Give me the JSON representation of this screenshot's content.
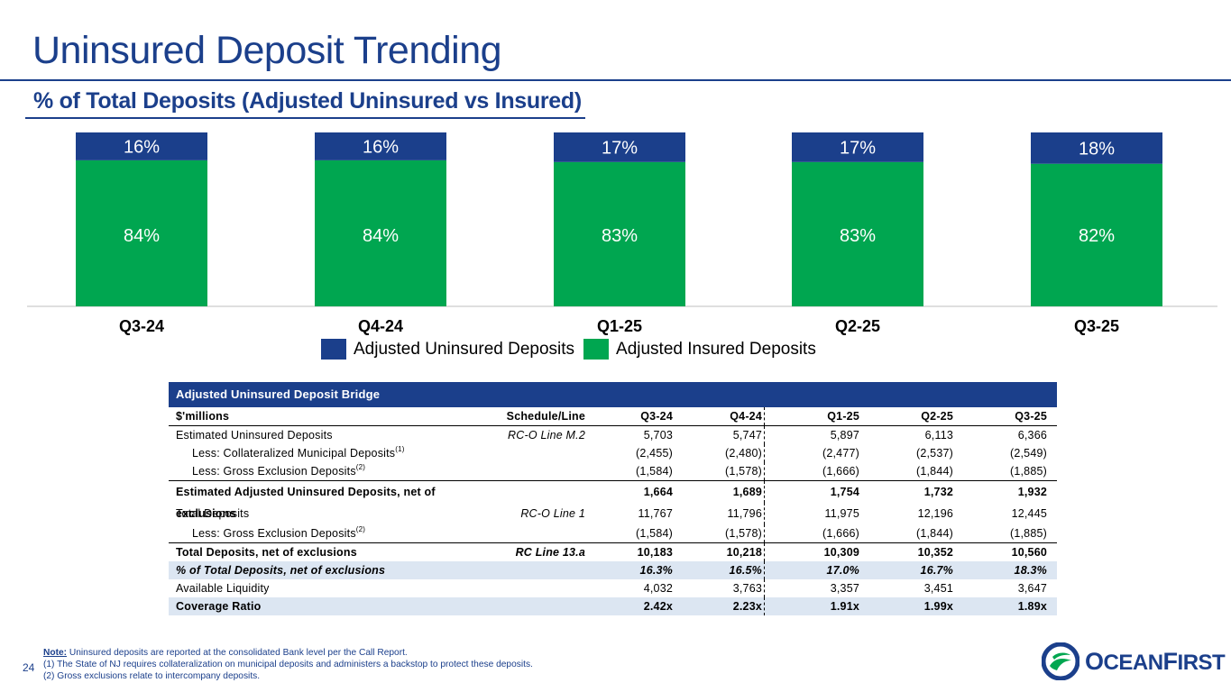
{
  "title": "Uninsured Deposit Trending",
  "subtitle": "% of Total Deposits (Adjusted Uninsured vs Insured)",
  "colors": {
    "brand_blue": "#1b3f8b",
    "uninsured": "#1b3f8b",
    "insured": "#00a650",
    "shade": "#dce6f2"
  },
  "chart_data": {
    "type": "bar",
    "stacked": true,
    "percent": true,
    "categories": [
      "Q3-24",
      "Q4-24",
      "Q1-25",
      "Q2-25",
      "Q3-25"
    ],
    "series": [
      {
        "name": "Adjusted Insured Deposits",
        "values": [
          84,
          84,
          83,
          83,
          82
        ],
        "labels": [
          "84%",
          "84%",
          "83%",
          "83%",
          "82%"
        ]
      },
      {
        "name": "Adjusted Uninsured Deposits",
        "values": [
          16,
          16,
          17,
          17,
          18
        ],
        "labels": [
          "16%",
          "16%",
          "17%",
          "17%",
          "18%"
        ]
      }
    ],
    "ylim": [
      0,
      100
    ],
    "legend": [
      "Adjusted Uninsured Deposits",
      "Adjusted Insured Deposits"
    ],
    "legend_position": "bottom"
  },
  "bridge": {
    "title": "Adjusted Uninsured Deposit Bridge",
    "header": {
      "label": "$'millions",
      "schedule": "Schedule/Line",
      "periods": [
        "Q3-24",
        "Q4-24",
        "Q1-25",
        "Q2-25",
        "Q3-25"
      ]
    },
    "rows": [
      {
        "label": "Estimated Uninsured Deposits",
        "sup": "",
        "schedule": "RC-O Line M.2",
        "values": [
          "5,703",
          "5,747",
          "5,897",
          "6,113",
          "6,366"
        ]
      },
      {
        "label": "Less: Collateralized Municipal Deposits",
        "sup": "(1)",
        "schedule": "",
        "values": [
          "(2,455)",
          "(2,480)",
          "(2,477)",
          "(2,537)",
          "(2,549)"
        ]
      },
      {
        "label": "Less: Gross Exclusion Deposits",
        "sup": "(2)",
        "schedule": "",
        "values": [
          "(1,584)",
          "(1,578)",
          "(1,666)",
          "(1,844)",
          "(1,885)"
        ]
      },
      {
        "label": "Estimated Adjusted Uninsured Deposits, net of exclusions",
        "sup": "",
        "schedule": "",
        "values": [
          "1,664",
          "1,689",
          "1,754",
          "1,732",
          "1,932"
        ]
      },
      {
        "label": "Total Deposits",
        "sup": "",
        "schedule": "RC-O Line 1",
        "values": [
          "11,767",
          "11,796",
          "11,975",
          "12,196",
          "12,445"
        ]
      },
      {
        "label": "Less: Gross Exclusion Deposits",
        "sup": "(2)",
        "schedule": "",
        "values": [
          "(1,584)",
          "(1,578)",
          "(1,666)",
          "(1,844)",
          "(1,885)"
        ]
      },
      {
        "label": "Total Deposits, net of exclusions",
        "sup": "",
        "schedule": "RC Line 13.a",
        "values": [
          "10,183",
          "10,218",
          "10,309",
          "10,352",
          "10,560"
        ]
      },
      {
        "label": "% of Total Deposits, net of exclusions",
        "sup": "",
        "schedule": "",
        "values": [
          "16.3%",
          "16.5%",
          "17.0%",
          "16.7%",
          "18.3%"
        ]
      },
      {
        "label": "Available Liquidity",
        "sup": "",
        "schedule": "",
        "values": [
          "4,032",
          "3,763",
          "3,357",
          "3,451",
          "3,647"
        ]
      },
      {
        "label": "Coverage Ratio",
        "sup": "",
        "schedule": "",
        "values": [
          "2.42x",
          "2.23x",
          "1.91x",
          "1.99x",
          "1.89x"
        ]
      }
    ]
  },
  "footer": {
    "page_number": "24",
    "note_label": "Note:",
    "note_text": " Uninsured deposits are reported at the consolidated Bank level per the Call Report.",
    "footnote1": "(1) The State of NJ requires collateralization on municipal deposits and administers a backstop to protect these deposits.",
    "footnote2": "(2) Gross exclusions relate to intercompany deposits.",
    "logo_first_letter": "O",
    "logo_rest_1": "CEAN",
    "logo_f": "F",
    "logo_rest_2": "IRST"
  }
}
